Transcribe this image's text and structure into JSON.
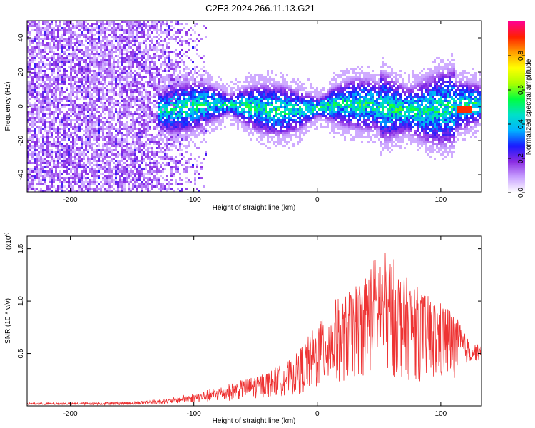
{
  "title": "C2E3.2024.266.11.13.G21",
  "chart_data": [
    {
      "type": "heatmap",
      "xlabel": "Height of straight line (km)",
      "ylabel": "Frequency (Hz)",
      "xlim": [
        -235,
        133
      ],
      "ylim": [
        -50,
        50
      ],
      "x_ticks": [
        -200,
        -100,
        0,
        100
      ],
      "x_tick_labels": [
        "-200",
        "-100",
        "0",
        "100"
      ],
      "y_ticks": [
        -40,
        -20,
        0,
        20,
        40
      ],
      "y_tick_labels": [
        "-40",
        "-20",
        "0",
        "20",
        "40"
      ],
      "colorbar": {
        "label": "Normalized spectral amplitude",
        "range": [
          0,
          1
        ],
        "ticks": [
          0.0,
          0.2,
          0.4,
          0.6,
          0.8
        ],
        "tick_labels": [
          "0.0",
          "0.2",
          "0.4",
          "0.6",
          "0.8"
        ],
        "colormap": [
          "#ffffff",
          "#c8a0ff",
          "#8a2be2",
          "#1a1aff",
          "#00b4ff",
          "#00e0c8",
          "#00ff40",
          "#aaff00",
          "#ffff00",
          "#ffa000",
          "#ff2000",
          "#ff0090"
        ]
      },
      "description_bands": [
        {
          "x_range": [
            -235,
            -90
          ],
          "freq_spread": 50,
          "amplitude": 0.15
        },
        {
          "x_range": [
            -130,
            133
          ],
          "freq_spread": 12,
          "amplitude": 0.35
        }
      ]
    },
    {
      "type": "line",
      "xlabel": "Height of straight line (km)",
      "ylabel": "SNR (10 * v/v)",
      "y_exponent_label": "(x10",
      "y_exponent": "4",
      "xlim": [
        -235,
        133
      ],
      "ylim": [
        0,
        1.62
      ],
      "x_ticks": [
        -200,
        -100,
        0,
        100
      ],
      "x_tick_labels": [
        "-200",
        "-100",
        "0",
        "100"
      ],
      "y_ticks": [
        0.5,
        1.0,
        1.5
      ],
      "y_tick_labels": [
        "0.5",
        "1.0",
        "1.5"
      ],
      "color": "#ee3333",
      "envelope": {
        "x": [
          -235,
          -200,
          -150,
          -120,
          -100,
          -80,
          -60,
          -40,
          -20,
          -10,
          0,
          10,
          20,
          30,
          40,
          50,
          60,
          70,
          80,
          90,
          100,
          110,
          118,
          125,
          133
        ],
        "upper": [
          0.03,
          0.03,
          0.04,
          0.07,
          0.12,
          0.18,
          0.25,
          0.33,
          0.45,
          0.62,
          0.8,
          1.0,
          1.05,
          1.15,
          1.3,
          1.5,
          1.45,
          1.25,
          1.15,
          1.05,
          1.0,
          0.95,
          0.72,
          0.6,
          0.58
        ],
        "lower": [
          0.01,
          0.01,
          0.01,
          0.02,
          0.03,
          0.04,
          0.06,
          0.08,
          0.1,
          0.12,
          0.14,
          0.18,
          0.22,
          0.25,
          0.3,
          0.3,
          0.27,
          0.25,
          0.24,
          0.22,
          0.22,
          0.25,
          0.38,
          0.42,
          0.44
        ]
      }
    }
  ]
}
